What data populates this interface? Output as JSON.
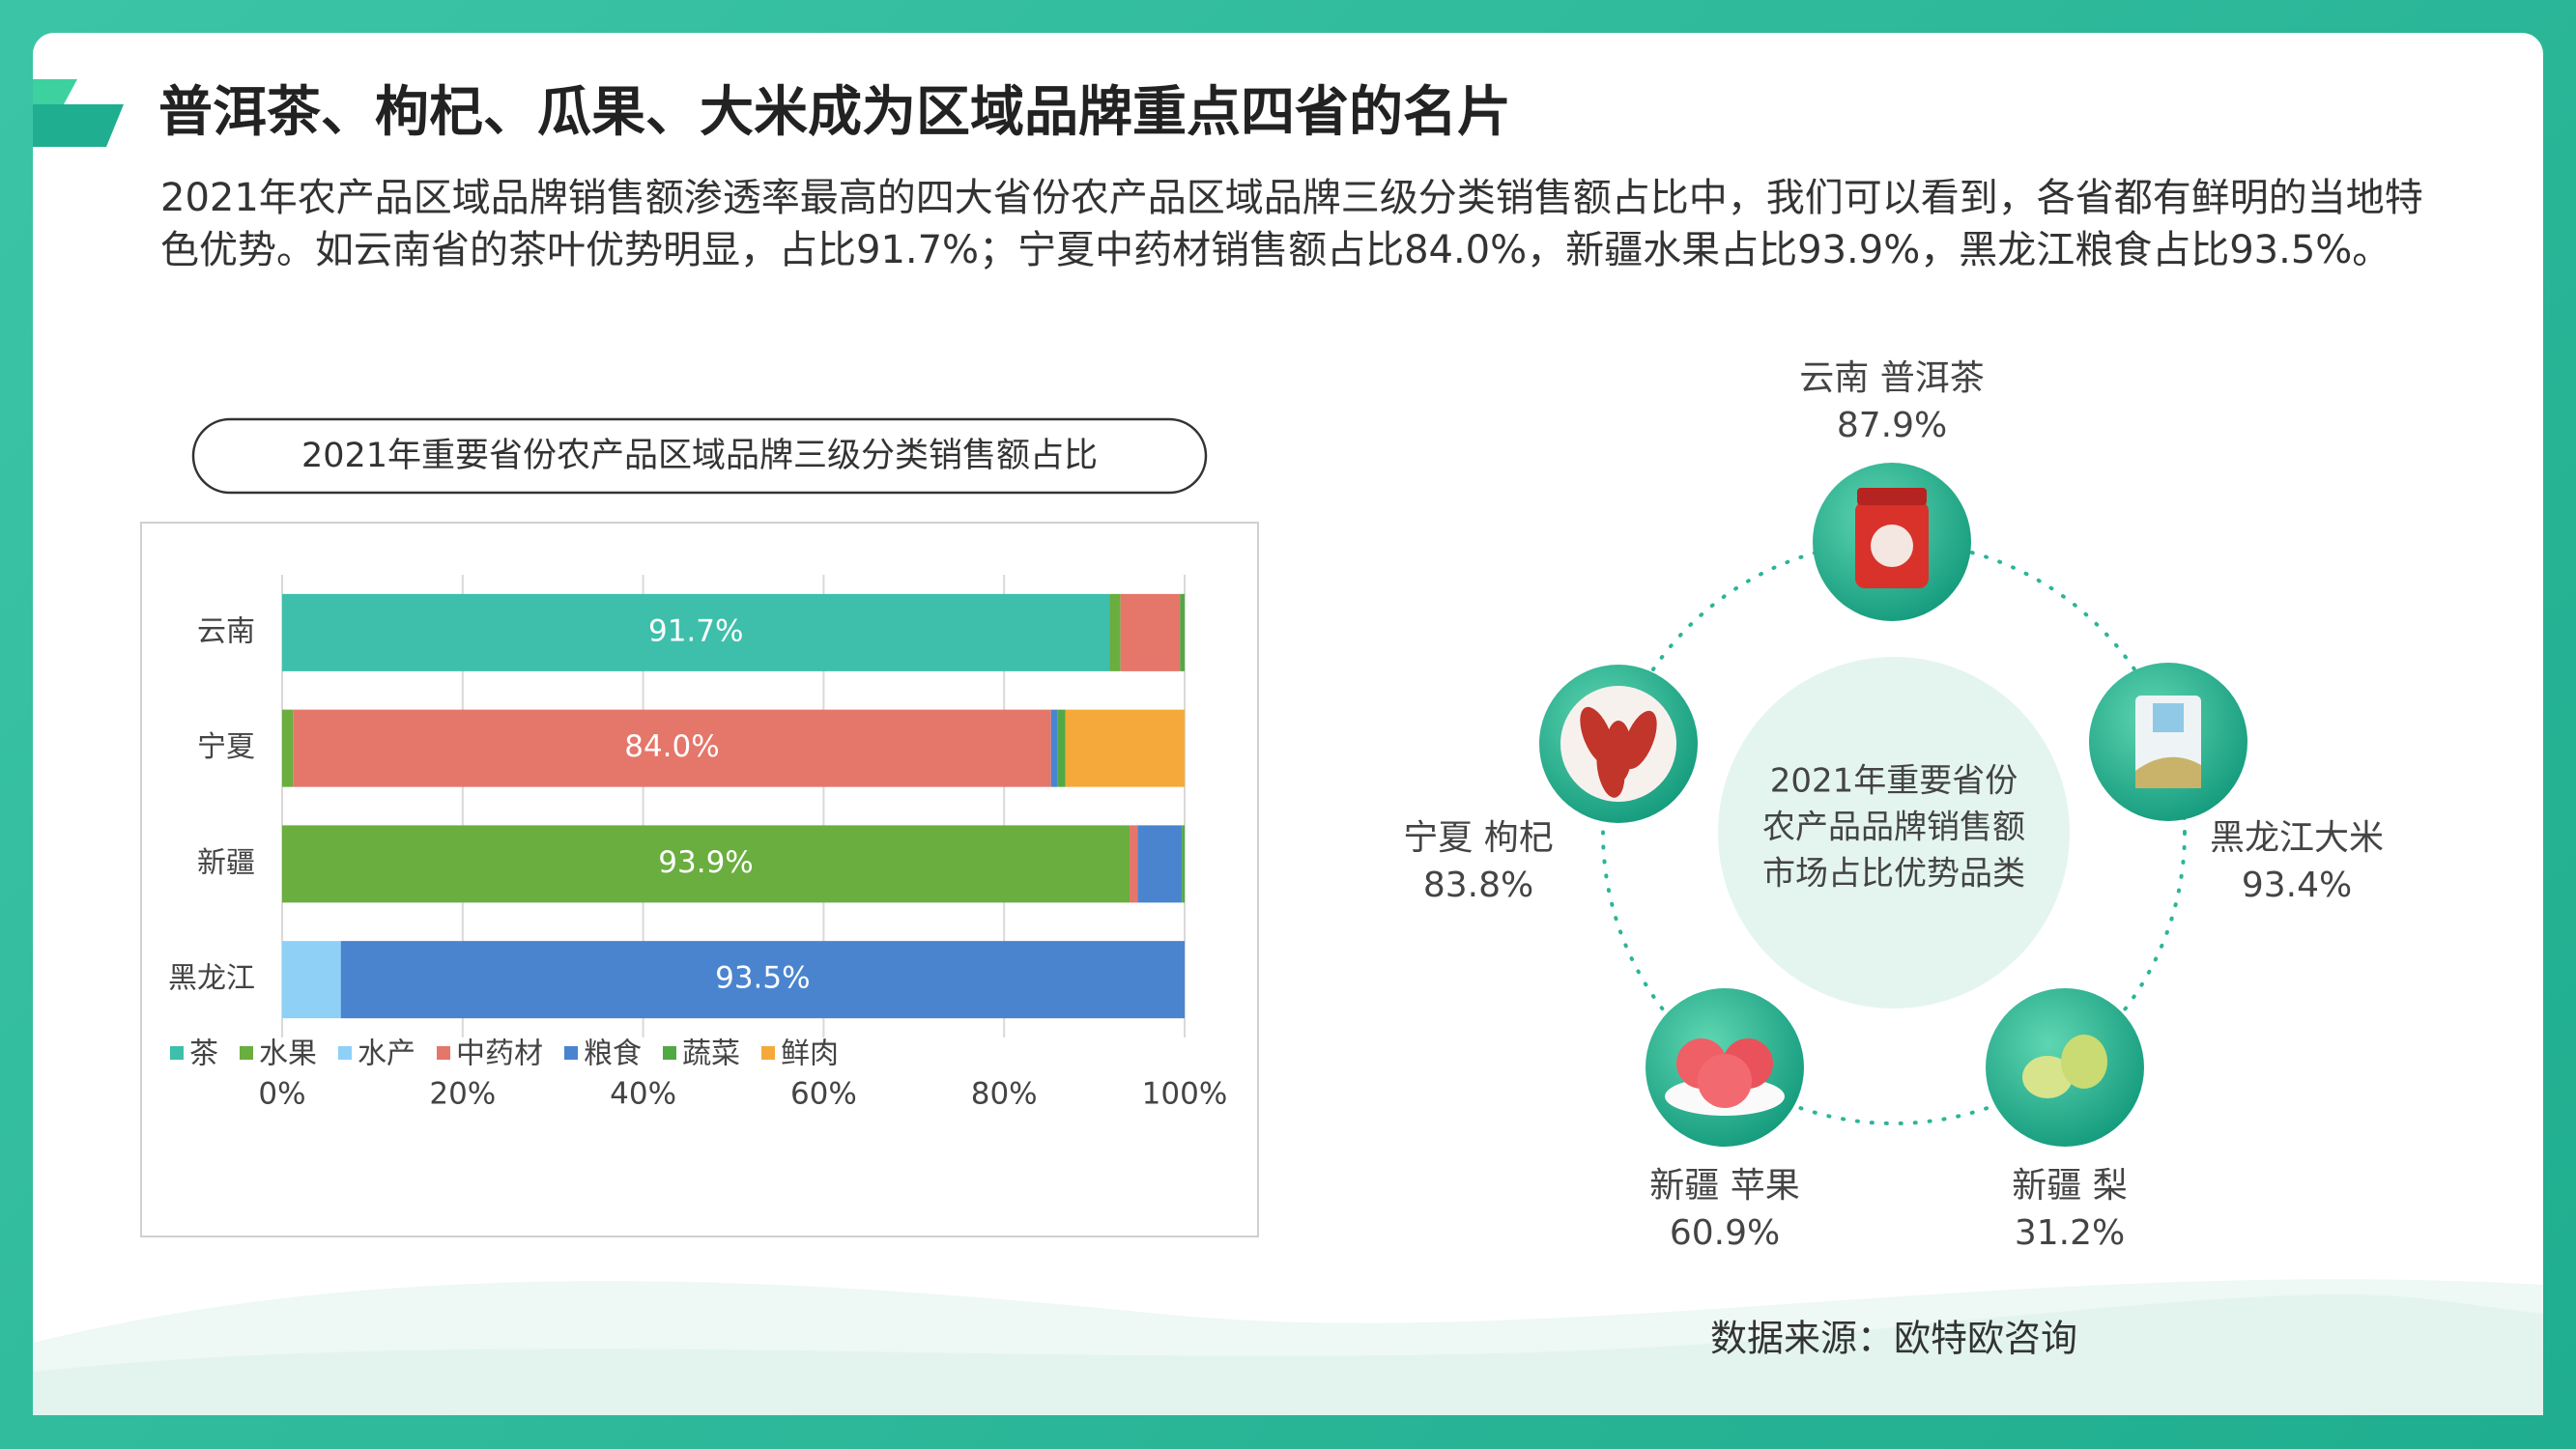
{
  "header": {
    "title": "普洱茶、枸杞、瓜果、大米成为区域品牌重点四省的名片",
    "description": "2021年农产品区域品牌销售额渗透率最高的四大省份农产品区域品牌三级分类销售额占比中，我们可以看到，各省都有鲜明的当地特色优势。如云南省的茶叶优势明显，占比91.7%；宁夏中药材销售额占比84.0%，新疆水果占比93.9%，黑龙江粮食占比93.5%。"
  },
  "chart_data": {
    "type": "stacked-bar-horizontal",
    "title": "2021年重要省份农产品区域品牌三级分类销售额占比",
    "categories": [
      "云南",
      "宁夏",
      "新疆",
      "黑龙江"
    ],
    "series": [
      {
        "name": "茶",
        "color": "#3dbfab",
        "values": [
          91.7,
          0,
          0,
          0
        ],
        "value_labels": [
          "91.7%",
          null,
          null,
          null
        ]
      },
      {
        "name": "水果",
        "color": "#6aae3f",
        "values": [
          1.2,
          1.2,
          93.9,
          0
        ],
        "value_labels": [
          null,
          null,
          "93.9%",
          null
        ]
      },
      {
        "name": "水产",
        "color": "#8fd0f7",
        "values": [
          0,
          0,
          0,
          6.5
        ]
      },
      {
        "name": "中药材",
        "color": "#e5766a",
        "values": [
          6.6,
          84.0,
          0.9,
          0
        ],
        "value_labels": [
          null,
          "84.0%",
          null,
          null
        ]
      },
      {
        "name": "粮食",
        "color": "#4a84cf",
        "values": [
          0,
          0.7,
          4.9,
          93.5
        ],
        "value_labels": [
          null,
          null,
          null,
          "93.5%"
        ]
      },
      {
        "name": "蔬菜",
        "color": "#52a844",
        "values": [
          0.5,
          0.9,
          0.3,
          0
        ]
      },
      {
        "name": "鲜肉",
        "color": "#f5a93b",
        "values": [
          0,
          13.2,
          0,
          0
        ]
      }
    ],
    "xlim": [
      0,
      100
    ],
    "xticks": [
      {
        "value": 0,
        "label": "0%"
      },
      {
        "value": 20,
        "label": "20%"
      },
      {
        "value": 40,
        "label": "40%"
      },
      {
        "value": 60,
        "label": "60%"
      },
      {
        "value": 80,
        "label": "80%"
      },
      {
        "value": 100,
        "label": "100%"
      }
    ],
    "grid": true,
    "legend": "bottom-left"
  },
  "diagram": {
    "center": [
      "2021年重要省份",
      "农产品品牌销售额",
      "市场占比优势品类"
    ],
    "nodes": [
      {
        "label": "云南 普洱茶",
        "share": "87.9%"
      },
      {
        "label": "黑龙江大米",
        "share": "93.4%"
      },
      {
        "label": "新疆  梨",
        "share": "31.2%"
      },
      {
        "label": "新疆 苹果",
        "share": "60.9%"
      },
      {
        "label": "宁夏 枸杞",
        "share": "83.8%"
      }
    ]
  },
  "source": "数据来源：欧特欧咨询"
}
